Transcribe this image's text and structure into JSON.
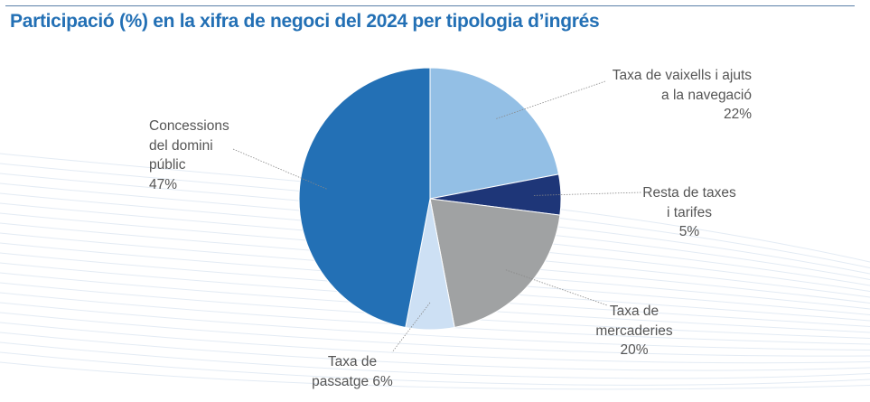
{
  "chart_data": {
    "type": "pie",
    "title": "Participació (%) en la xifra de negoci del 2024 per tipologia d’ingrés",
    "start_angle": "12 o'clock, clockwise",
    "slices": [
      {
        "label": [
          "Taxa de vaixells i ajuts",
          "a la navegació"
        ],
        "value": 22,
        "value_label": "22%",
        "color": "#93bfe5"
      },
      {
        "label": [
          "Resta de taxes",
          "i tarifes"
        ],
        "value": 5,
        "value_label": "5%",
        "color": "#1e3678"
      },
      {
        "label": [
          "Taxa de",
          "mercaderies"
        ],
        "value": 20,
        "value_label": "20%",
        "color": "#a0a2a3"
      },
      {
        "label": [
          "Taxa de",
          "passatge"
        ],
        "value": 6,
        "value_label": "6%",
        "color": "#cde0f4"
      },
      {
        "label": [
          "Concessions",
          "del domini",
          "públic"
        ],
        "value": 47,
        "value_label": "47%",
        "color": "#2370b5"
      }
    ]
  }
}
